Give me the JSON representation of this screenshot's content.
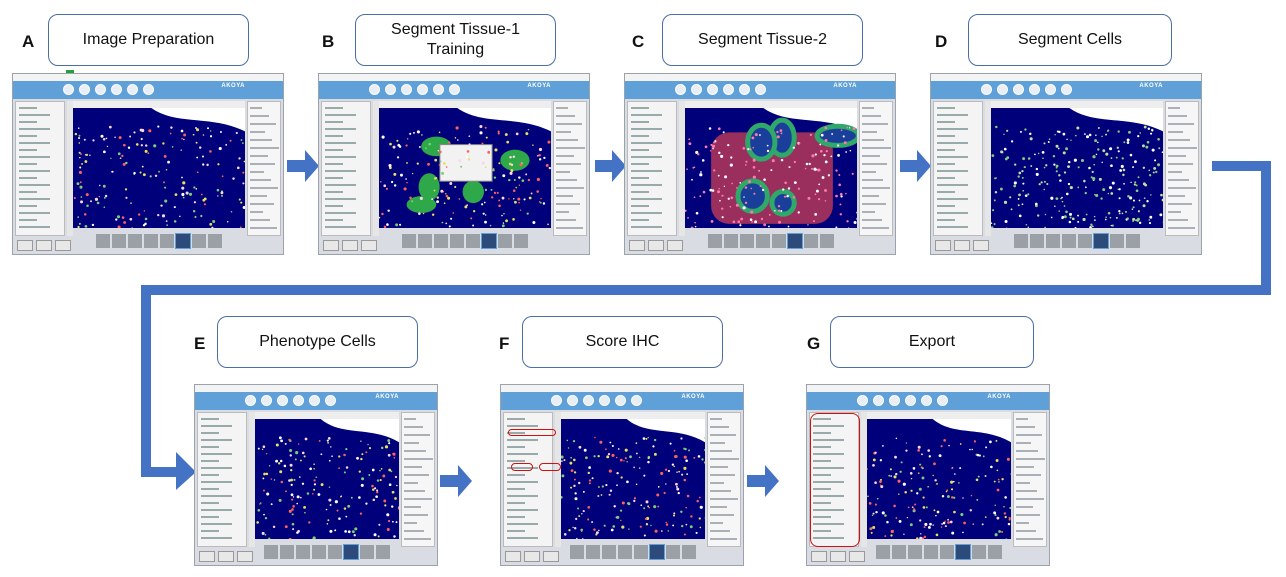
{
  "colors": {
    "arrow": "#4472c4",
    "green_arrow": "#1fa23a",
    "ribbon": "#5fa0d8",
    "tissue_background": "#00007a",
    "highlight_outline": "#d01010"
  },
  "steps": [
    {
      "letter": "A",
      "label": "Image Preparation"
    },
    {
      "letter": "B",
      "label": "Segment Tissue-1\nTraining"
    },
    {
      "letter": "C",
      "label": "Segment Tissue-2"
    },
    {
      "letter": "D",
      "label": "Segment  Cells"
    },
    {
      "letter": "E",
      "label": "Phenotype  Cells"
    },
    {
      "letter": "F",
      "label": "Score IHC"
    },
    {
      "letter": "G",
      "label": "Export"
    }
  ],
  "app": {
    "logo_text": "AKOYA"
  }
}
